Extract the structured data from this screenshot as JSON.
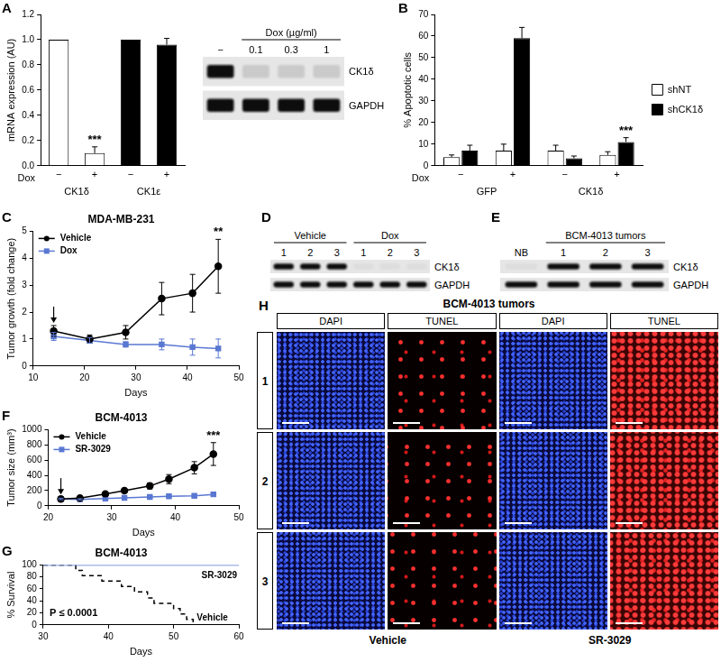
{
  "chart_data": [
    {
      "panel": "A",
      "type": "bar",
      "categories": [
        "−",
        "+",
        "−",
        "+"
      ],
      "groups": [
        "CK1δ",
        "CK1ε"
      ],
      "x_row_label": "Dox",
      "values": [
        1.0,
        0.1,
        1.0,
        0.96
      ],
      "errors": [
        0,
        0.05,
        0,
        0.05
      ],
      "colors": [
        "#ffffff",
        "#ffffff",
        "#000000",
        "#000000"
      ],
      "y_label": "mRNA expression (AU)",
      "ylim": [
        0,
        1.2
      ],
      "yticks": [
        {
          "value": 0,
          "label": "0.0"
        },
        0.2,
        0.4,
        0.6,
        0.8,
        {
          "value": 1,
          "label": "1.0"
        },
        1.2
      ],
      "annotations": [
        {
          "text": "***",
          "index": 1
        }
      ],
      "grid": false
    },
    {
      "panel": "B",
      "type": "bar",
      "categories": [
        "−",
        "+",
        "−",
        "+"
      ],
      "groups": [
        "GFP",
        "CK1δ"
      ],
      "x_row_label": "Dox",
      "series": [
        {
          "name": "shNT",
          "color": "#ffffff",
          "values": [
            4,
            7,
            7,
            5
          ],
          "errors": [
            1,
            3,
            2.5,
            1.5
          ]
        },
        {
          "name": "shCK1δ",
          "color": "#000000",
          "values": [
            7,
            59,
            3.5,
            11
          ],
          "errors": [
            2.5,
            5,
            1,
            2
          ]
        }
      ],
      "y_label": "% Apoptotic cells",
      "ylim": [
        0,
        70
      ],
      "yticks": [
        0,
        10,
        20,
        30,
        40,
        50,
        60,
        70
      ],
      "annotations": [
        {
          "text": "***",
          "series": 1,
          "index": 3
        }
      ],
      "legend": "right",
      "grid": false
    },
    {
      "panel": "C",
      "type": "line",
      "title": "MDA-MB-231",
      "x_label": "Days",
      "y_label": "Tumor growth (fold change)",
      "xlim": [
        10,
        50
      ],
      "xticks": [
        10,
        20,
        30,
        40,
        50
      ],
      "ylim": [
        0,
        5
      ],
      "yticks": [
        0,
        1,
        2,
        3,
        4,
        5
      ],
      "series": [
        {
          "name": "Vehicle",
          "color": "#000000",
          "marker": "circle",
          "line_style": "solid",
          "x": [
            14,
            21,
            28,
            35,
            41,
            46
          ],
          "values": [
            1.3,
            1.0,
            1.25,
            2.5,
            2.7,
            3.7
          ],
          "errors": [
            0.2,
            0.15,
            0.25,
            0.6,
            0.7,
            1.0
          ]
        },
        {
          "name": "Dox",
          "color": "#5a78d2",
          "marker": "square",
          "line_style": "solid",
          "x": [
            14,
            21,
            28,
            35,
            41,
            46
          ],
          "values": [
            1.1,
            0.95,
            0.8,
            0.8,
            0.7,
            0.65
          ],
          "errors": [
            0.15,
            0.1,
            0.1,
            0.2,
            0.3,
            0.35
          ]
        }
      ],
      "annotations": [
        {
          "text": "**",
          "x": 46
        }
      ],
      "arrow": {
        "x": 14,
        "y": 1.6
      },
      "legend": "top-left",
      "grid": false
    },
    {
      "panel": "F",
      "type": "line",
      "title": "BCM-4013",
      "x_label": "Days",
      "y_label": "Tumor size (mm³)",
      "xlim": [
        20,
        50
      ],
      "xticks": [
        20,
        30,
        40,
        50
      ],
      "ylim": [
        0,
        1000
      ],
      "yticks": [
        0,
        200,
        400,
        600,
        800,
        1000
      ],
      "series": [
        {
          "name": "Vehicle",
          "color": "#000000",
          "marker": "circle",
          "line_style": "solid",
          "x": [
            22,
            25,
            29,
            32,
            36,
            39,
            43,
            46
          ],
          "values": [
            90,
            100,
            155,
            200,
            260,
            350,
            500,
            680
          ],
          "errors": [
            10,
            10,
            20,
            30,
            40,
            60,
            80,
            150
          ]
        },
        {
          "name": "SR-3029",
          "color": "#5a78d2",
          "marker": "square",
          "line_style": "solid",
          "x": [
            22,
            25,
            29,
            32,
            36,
            39,
            43,
            46
          ],
          "values": [
            90,
            85,
            95,
            105,
            115,
            125,
            130,
            150
          ],
          "errors": [
            10,
            8,
            10,
            10,
            15,
            15,
            15,
            20
          ]
        }
      ],
      "annotations": [
        {
          "text": "***",
          "x": 46
        }
      ],
      "arrow": {
        "x": 22,
        "y": 150
      },
      "legend": "top-left",
      "grid": false
    },
    {
      "panel": "G",
      "type": "step",
      "title": "BCM-4013",
      "x_label": "Days",
      "y_label": "% Survival",
      "xlim": [
        30,
        60
      ],
      "xticks": [
        30,
        40,
        50,
        60
      ],
      "ylim": [
        0,
        100
      ],
      "yticks": [
        0,
        20,
        40,
        60,
        80,
        100
      ],
      "series": [
        {
          "name": "SR-3029",
          "color": "#5a78d2",
          "line_style": "solid",
          "x": [
            30,
            60
          ],
          "values": [
            100,
            100
          ]
        },
        {
          "name": "Vehicle",
          "color": "#000000",
          "line_style": "dashed",
          "x": [
            30,
            35,
            36,
            39,
            42,
            44,
            46,
            47,
            50,
            51,
            52,
            53
          ],
          "values": [
            100,
            91,
            82,
            73,
            64,
            55,
            45,
            36,
            27,
            18,
            9,
            0
          ]
        }
      ],
      "annotations": [
        {
          "text": "P ≤ 0.0001",
          "x": 31,
          "y": 20
        }
      ],
      "grid": false
    }
  ],
  "blots": [
    {
      "groups": [
        {
          "lanes": [
            "−"
          ]
        },
        {
          "header": "Dox (µg/ml)",
          "lanes": [
            "0.1",
            "0.3",
            "1"
          ]
        }
      ],
      "rows": [
        "CK1δ",
        "GAPDH"
      ]
    },
    {
      "panel": "D",
      "groups": [
        {
          "header": "Vehicle",
          "lanes": [
            "1",
            "2",
            "3"
          ]
        },
        {
          "header": "Dox",
          "lanes": [
            "1",
            "2",
            "3"
          ]
        }
      ],
      "rows": [
        "CK1δ",
        "GAPDH"
      ]
    },
    {
      "panel": "E",
      "groups": [
        {
          "lanes": [
            "NB"
          ]
        },
        {
          "header": "BCM-4013 tumors",
          "lanes": [
            "1",
            "2",
            "3"
          ]
        }
      ],
      "rows": [
        "CK1δ",
        "GAPDH"
      ]
    }
  ],
  "micrographs": {
    "panel": "H",
    "title": "BCM-4013 tumors",
    "columns": [
      "DAPI",
      "TUNEL",
      "DAPI",
      "TUNEL"
    ],
    "rows": [
      "1",
      "2",
      "3"
    ],
    "groups": [
      "Vehicle",
      "SR-3029"
    ]
  }
}
